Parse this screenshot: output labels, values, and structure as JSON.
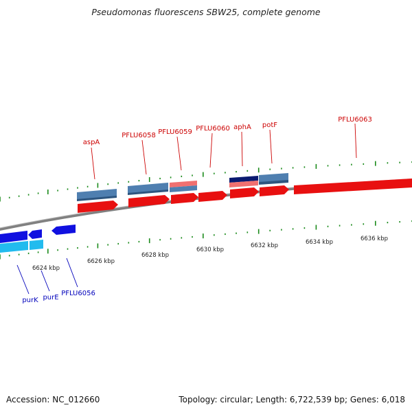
{
  "title": "Pseudomonas fluorescens SBW25, complete genome",
  "accession_label": "Accession: NC_012660",
  "topology_label": "Topology: circular; Length: 6,722,539 bp; Genes: 6,018",
  "colors": {
    "forward_gene": "#e81010",
    "reverse_gene": "#1010e0",
    "reverse_gene_light": "#22bbee",
    "feature_blue": "#4f7fb0",
    "feature_pink": "#f07070",
    "feature_navy": "#0a1a70",
    "backbone": "#808080",
    "tick": "#1a8a1a",
    "forward_label": "#cc0000",
    "reverse_label": "#0000bb"
  },
  "forward_labels": [
    {
      "name": "aspA"
    },
    {
      "name": "PFLU6058"
    },
    {
      "name": "PFLU6059"
    },
    {
      "name": "PFLU6060"
    },
    {
      "name": "aphA"
    },
    {
      "name": "potF"
    },
    {
      "name": "PFLU6063"
    }
  ],
  "reverse_labels": [
    {
      "name": "purK"
    },
    {
      "name": "purE"
    },
    {
      "name": "PFLU6056"
    }
  ],
  "kbp_labels": [
    "6624 kbp",
    "6626 kbp",
    "6628 kbp",
    "6630 kbp",
    "6632 kbp",
    "6634 kbp",
    "6636 kbp"
  ]
}
